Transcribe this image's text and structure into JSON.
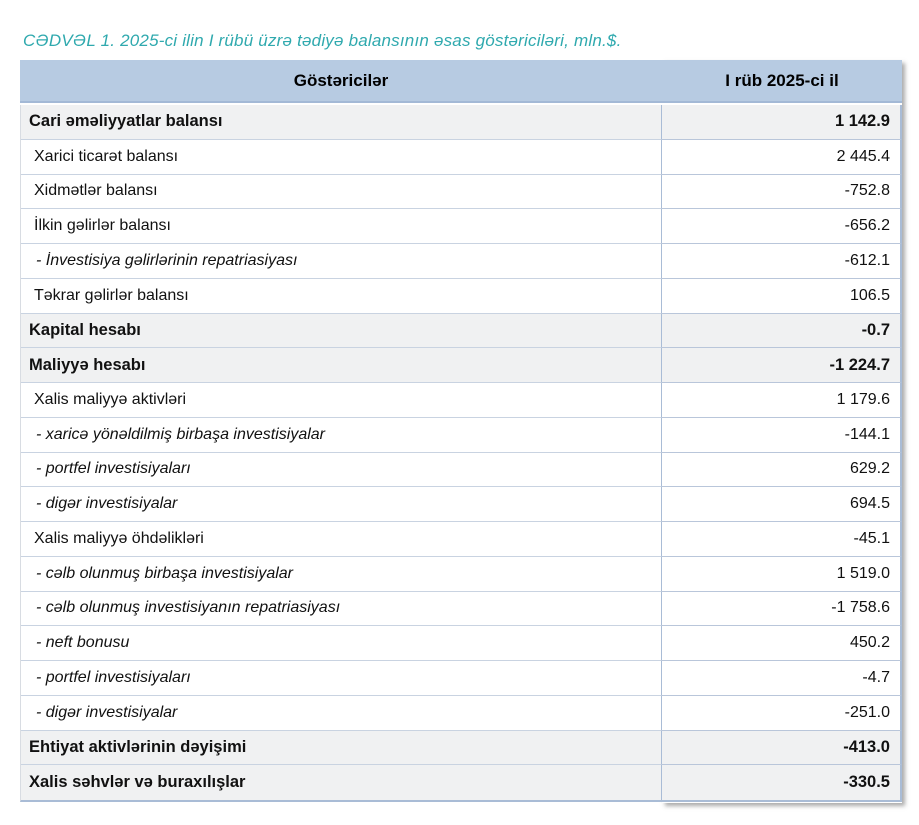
{
  "title": "CƏDVƏL 1. 2025-ci ilin I rübü üzrə tədiyə balansının əsas göstəriciləri, mln.$.",
  "table": {
    "columns": {
      "indicator": "Göstəricilər",
      "period": "I rüb 2025-ci il"
    },
    "rows": [
      {
        "label": "Cari əməliyyatlar balansı",
        "value": "1 142.9",
        "style": "total"
      },
      {
        "label": "Xarici ticarət balansı",
        "value": "2 445.4",
        "style": "normal"
      },
      {
        "label": "Xidmətlər balansı",
        "value": "-752.8",
        "style": "normal"
      },
      {
        "label": "İlkin gəlirlər balansı",
        "value": "-656.2",
        "style": "normal"
      },
      {
        "label": "- İnvestisiya gəlirlərinin repatriasiyası",
        "value": "-612.1",
        "style": "sub"
      },
      {
        "label": "Təkrar gəlirlər balansı",
        "value": "106.5",
        "style": "normal"
      },
      {
        "label": "Kapital hesabı",
        "value": "-0.7",
        "style": "total"
      },
      {
        "label": "Maliyyə hesabı",
        "value": "-1 224.7",
        "style": "total"
      },
      {
        "label": "Xalis maliyyə aktivləri",
        "value": "1 179.6",
        "style": "normal"
      },
      {
        "label": "- xaricə yönəldilmiş birbaşa investisiyalar",
        "value": "-144.1",
        "style": "sub"
      },
      {
        "label": "- portfel investisiyaları",
        "value": "629.2",
        "style": "sub"
      },
      {
        "label": "- digər investisiyalar",
        "value": "694.5",
        "style": "sub"
      },
      {
        "label": "Xalis maliyyə öhdəlikləri",
        "value": "-45.1",
        "style": "normal"
      },
      {
        "label": "- cəlb olunmuş birbaşa investisiyalar",
        "value": "1 519.0",
        "style": "sub"
      },
      {
        "label": "- cəlb olunmuş investisiyanın repatriasiyası",
        "value": "-1 758.6",
        "style": "sub"
      },
      {
        "label": "- neft bonusu",
        "value": "450.2",
        "style": "sub"
      },
      {
        "label": "- portfel investisiyaları",
        "value": "-4.7",
        "style": "sub"
      },
      {
        "label": "- digər investisiyalar",
        "value": "-251.0",
        "style": "sub"
      },
      {
        "label": "Ehtiyat aktivlərinin dəyişimi",
        "value": "-413.0",
        "style": "total"
      },
      {
        "label": "Xalis səhvlər və buraxılışlar",
        "value": "-330.5",
        "style": "total"
      }
    ]
  },
  "colors": {
    "title_text": "#2FA9AE",
    "header_bg": "#B7CBE2",
    "total_row_bg": "#F0F1F2",
    "grid_border": "#A9BCD6",
    "light_border": "#C9D3E1"
  }
}
